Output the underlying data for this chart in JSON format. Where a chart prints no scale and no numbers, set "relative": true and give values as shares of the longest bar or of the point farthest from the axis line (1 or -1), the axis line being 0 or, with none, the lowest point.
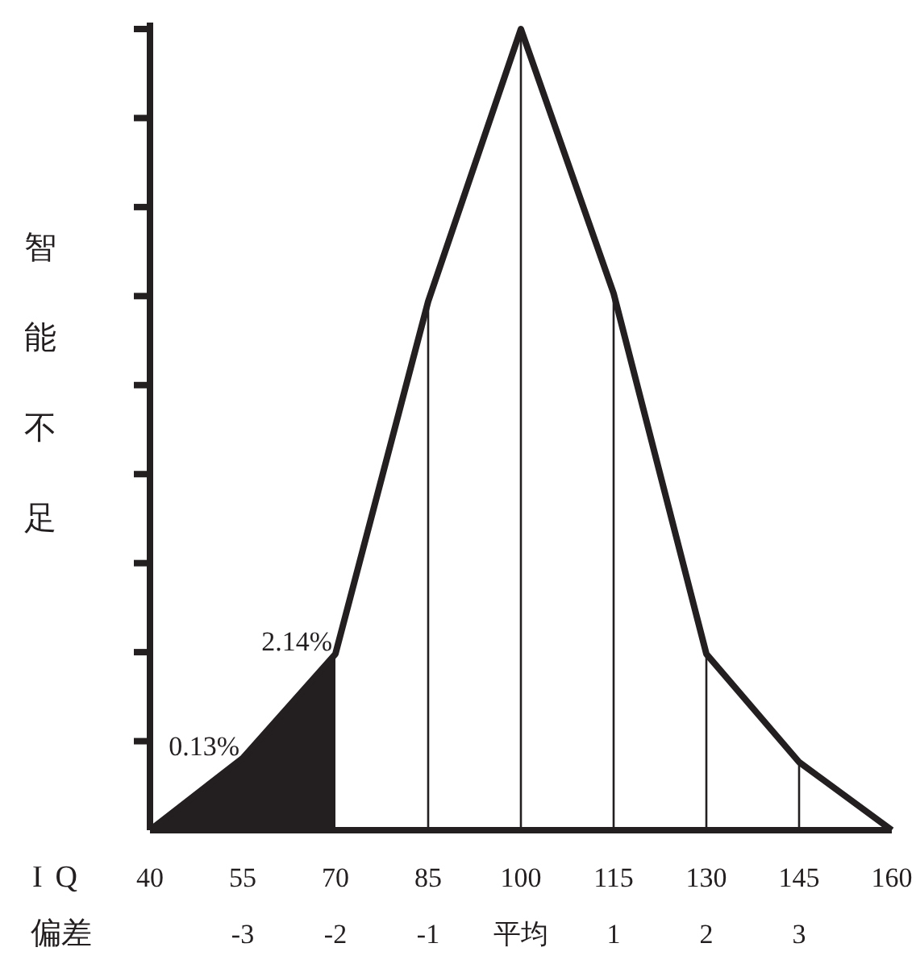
{
  "chart_data": {
    "type": "line",
    "relative": true,
    "ylabel": "智能不足",
    "xlabel": "IQ",
    "x2label": "偏差",
    "x": [
      40,
      55,
      70,
      85,
      100,
      115,
      130,
      145,
      160
    ],
    "xlim": [
      40,
      160
    ],
    "xticks": [
      40,
      55,
      70,
      85,
      100,
      115,
      130,
      145,
      160
    ],
    "x2lim": [
      -4,
      4
    ],
    "x2ticks": [
      -3,
      -2,
      -1,
      {
        "value": 0,
        "label": "平均"
      },
      1,
      2,
      3
    ],
    "series": [
      {
        "type": "area",
        "color": "#231f20",
        "x": [
          40,
          55,
          70
        ],
        "values": [
          0,
          0.09,
          0.22
        ]
      },
      {
        "type": "line",
        "color": "#231f20",
        "values": [
          0,
          0.09,
          0.22,
          0.66,
          1,
          0.67,
          0.22,
          0.085,
          0
        ]
      }
    ],
    "ref_lines": [
      {
        "axis": "x",
        "value": 85,
        "label": null
      },
      {
        "axis": "x",
        "value": 100,
        "label": null
      },
      {
        "axis": "x",
        "value": 115,
        "label": null
      },
      {
        "axis": "x",
        "value": 130,
        "label": null
      },
      {
        "axis": "x",
        "value": 145,
        "label": null
      }
    ],
    "annotations": [
      {
        "text": "0.13%",
        "x": 55,
        "y": 0.09
      },
      {
        "text": "2.14%",
        "x": 70,
        "y": 0.22
      }
    ],
    "marker": "none",
    "grid": false
  }
}
